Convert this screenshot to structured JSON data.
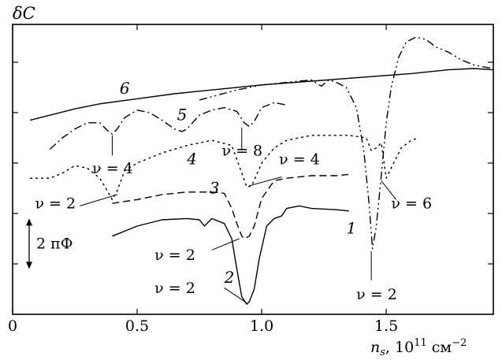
{
  "chart_data": {
    "type": "line",
    "title": "",
    "ylabel": "δC",
    "xlabel": {
      "var": "n",
      "sub": "s",
      "mid": ", 10",
      "sup1": "11",
      "unit": " см",
      "sup2": "−2"
    },
    "xlim": [
      0,
      1.93
    ],
    "ylim": [
      0,
      11.5
    ],
    "x_ticks": [
      0,
      0.5,
      1.0,
      1.5
    ],
    "x_tick_labels": [
      "0",
      "0.5",
      "1.0",
      "1.5"
    ],
    "y_ticks": [
      2,
      4,
      6,
      8,
      10
    ],
    "grid": false,
    "scale_bar": {
      "label": "2 пФ",
      "value": 2
    },
    "series": [
      {
        "name": "1",
        "style": "dashdotdot",
        "x": [
          0.75,
          0.9,
          1.0,
          1.1,
          1.2,
          1.24,
          1.27,
          1.3,
          1.34,
          1.38,
          1.41,
          1.43,
          1.445,
          1.46,
          1.48,
          1.5,
          1.52,
          1.55,
          1.58,
          1.62,
          1.66,
          1.7,
          1.75,
          1.8,
          1.85,
          1.9,
          1.93
        ],
        "y": [
          8.5,
          8.9,
          9.1,
          9.2,
          9.3,
          9.05,
          9.3,
          9.2,
          9.0,
          8.2,
          6.5,
          4.5,
          2.6,
          3.5,
          5.5,
          7.6,
          9.0,
          10.2,
          10.8,
          11.0,
          10.9,
          10.6,
          10.4,
          10.1,
          9.9,
          9.8,
          9.75
        ]
      },
      {
        "name": "2",
        "style": "solid",
        "x": [
          0.4,
          0.5,
          0.6,
          0.7,
          0.75,
          0.77,
          0.8,
          0.85,
          0.88,
          0.9,
          0.92,
          0.94,
          0.95,
          0.97,
          0.99,
          1.02,
          1.05,
          1.08,
          1.1,
          1.15,
          1.2,
          1.3,
          1.35
        ],
        "y": [
          3.1,
          3.5,
          3.75,
          3.8,
          3.75,
          3.5,
          3.8,
          3.6,
          3.0,
          1.8,
          0.7,
          0.4,
          0.5,
          1.0,
          2.2,
          3.5,
          3.8,
          3.9,
          4.2,
          4.3,
          4.2,
          4.15,
          4.1
        ]
      },
      {
        "name": "3",
        "style": "dashed",
        "x": [
          0.4,
          0.5,
          0.6,
          0.7,
          0.8,
          0.85,
          0.88,
          0.9,
          0.92,
          0.93,
          0.95,
          0.97,
          1.0,
          1.05,
          1.1,
          1.2,
          1.3,
          1.35
        ],
        "y": [
          4.4,
          4.55,
          4.75,
          4.85,
          4.85,
          4.8,
          4.2,
          3.6,
          3.1,
          3.0,
          3.1,
          3.5,
          4.6,
          5.3,
          5.4,
          5.5,
          5.5,
          5.55
        ]
      },
      {
        "name": "4",
        "style": "dotted",
        "x": [
          0.07,
          0.15,
          0.2,
          0.25,
          0.3,
          0.35,
          0.38,
          0.4,
          0.42,
          0.45,
          0.5,
          0.6,
          0.7,
          0.8,
          0.88,
          0.92,
          0.94,
          0.96,
          1.0,
          1.05,
          1.1,
          1.2,
          1.3,
          1.35,
          1.42,
          1.44,
          1.46,
          1.48,
          1.5,
          1.53,
          1.56,
          1.6,
          1.63
        ],
        "y": [
          5.4,
          5.4,
          5.6,
          5.9,
          5.8,
          5.4,
          4.9,
          4.55,
          4.9,
          5.7,
          6.0,
          6.4,
          6.7,
          6.9,
          6.7,
          5.6,
          5.05,
          5.1,
          6.0,
          6.6,
          6.9,
          7.1,
          7.1,
          7.1,
          7.0,
          6.5,
          6.6,
          6.8,
          5.4,
          6.0,
          6.6,
          6.9,
          7.0
        ]
      },
      {
        "name": "5",
        "style": "dashdot",
        "x": [
          0.15,
          0.2,
          0.25,
          0.3,
          0.35,
          0.38,
          0.4,
          0.42,
          0.45,
          0.5,
          0.55,
          0.6,
          0.65,
          0.68,
          0.7,
          0.75,
          0.8,
          0.85,
          0.9,
          0.93,
          0.95,
          0.97,
          1.0,
          1.05,
          1.1
        ],
        "y": [
          6.55,
          7.0,
          7.35,
          7.6,
          7.6,
          7.3,
          7.15,
          7.35,
          7.8,
          8.1,
          8.0,
          7.7,
          7.35,
          7.25,
          7.35,
          7.9,
          8.1,
          8.2,
          8.05,
          7.6,
          7.45,
          7.65,
          8.2,
          8.4,
          8.3
        ]
      },
      {
        "name": "6",
        "style": "solid",
        "x": [
          0.07,
          0.15,
          0.25,
          0.35,
          0.5,
          0.65,
          0.8,
          1.0,
          1.2,
          1.4,
          1.6,
          1.75,
          1.85,
          1.93
        ],
        "y": [
          7.7,
          7.9,
          8.15,
          8.35,
          8.55,
          8.75,
          8.9,
          9.1,
          9.25,
          9.4,
          9.55,
          9.7,
          9.75,
          9.7
        ]
      }
    ],
    "curve_labels": [
      {
        "text": "6",
        "x": 0.43,
        "y": 8.75
      },
      {
        "text": "5",
        "x": 0.66,
        "y": 7.7
      },
      {
        "text": "4",
        "x": 0.7,
        "y": 5.95
      },
      {
        "text": "3",
        "x": 0.79,
        "y": 4.8
      },
      {
        "text": "2",
        "x": 0.85,
        "y": 1.25
      },
      {
        "text": "1",
        "x": 1.34,
        "y": 3.2
      }
    ],
    "annotations": [
      {
        "text": "ν = 2",
        "x": 0.09,
        "y": 4.2
      },
      {
        "text": "ν = 4",
        "x": 0.32,
        "y": 5.6
      },
      {
        "text": "ν = 8",
        "x": 0.84,
        "y": 6.3
      },
      {
        "text": "ν = 4",
        "x": 1.07,
        "y": 5.95
      },
      {
        "text": "ν = 2",
        "x": 0.57,
        "y": 2.15
      },
      {
        "text": "ν = 2",
        "x": 0.57,
        "y": 0.85
      },
      {
        "text": "ν = 6",
        "x": 1.52,
        "y": 4.2
      },
      {
        "text": "ν = 2",
        "x": 1.38,
        "y": 0.6
      }
    ]
  }
}
